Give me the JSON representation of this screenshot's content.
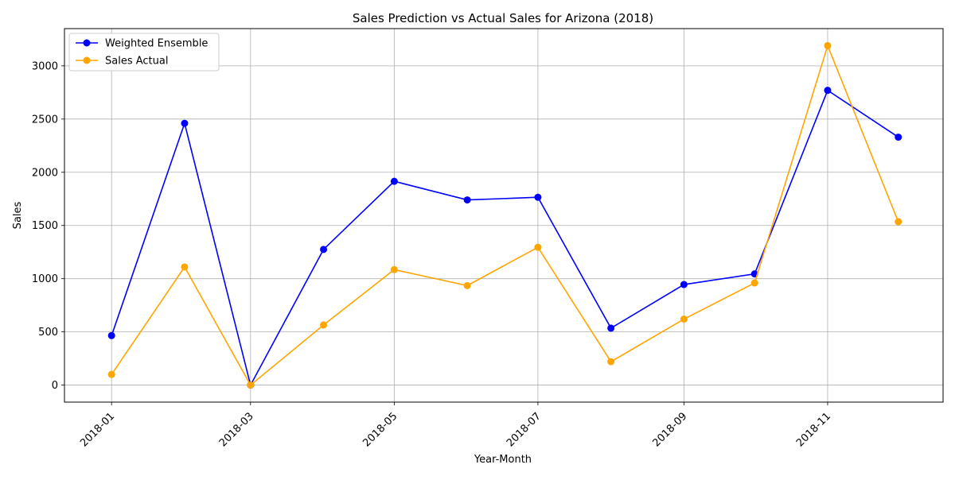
{
  "chart_data": {
    "type": "line",
    "title": "Sales Prediction vs Actual Sales for Arizona (2018)",
    "xlabel": "Year-Month",
    "ylabel": "Sales",
    "x": [
      "2018-01",
      "2018-02",
      "2018-03",
      "2018-04",
      "2018-05",
      "2018-06",
      "2018-07",
      "2018-08",
      "2018-09",
      "2018-10",
      "2018-11",
      "2018-12"
    ],
    "x_ticks": [
      "2018-01",
      "2018-03",
      "2018-05",
      "2018-07",
      "2018-09",
      "2018-11"
    ],
    "y_ticks": [
      0,
      500,
      1000,
      1500,
      2000,
      2500,
      3000
    ],
    "ylim": [
      -160,
      3350
    ],
    "xlim": [
      "2017-12-12",
      "2018-12-20"
    ],
    "grid": true,
    "legend_position": "top-left",
    "series": [
      {
        "name": "Weighted Ensemble",
        "color": "#0000ff",
        "marker": "circle",
        "values": [
          465,
          2460,
          0,
          1275,
          1915,
          1740,
          1765,
          535,
          945,
          1045,
          2770,
          2330
        ]
      },
      {
        "name": "Sales Actual",
        "color": "#ffa500",
        "marker": "circle",
        "values": [
          100,
          1110,
          0,
          565,
          1085,
          935,
          1295,
          220,
          620,
          960,
          3190,
          1535
        ]
      }
    ]
  }
}
